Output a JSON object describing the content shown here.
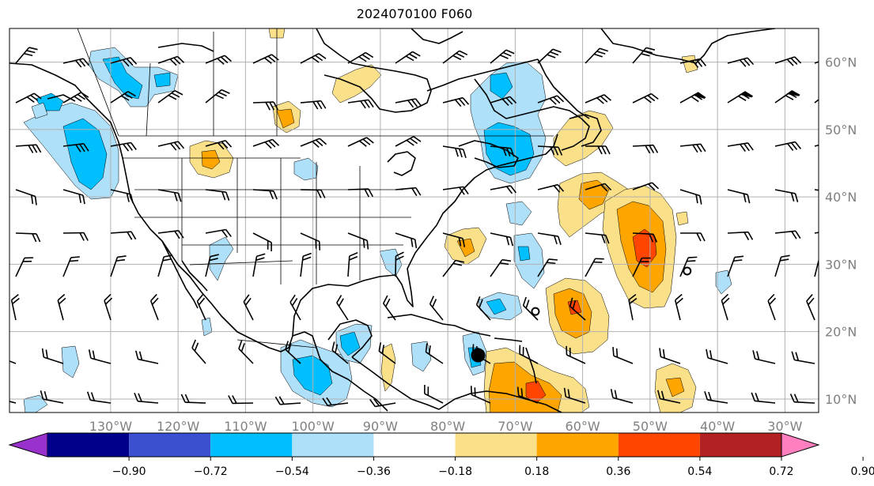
{
  "title": "2024070100 F060",
  "map": {
    "projection": "equirectangular",
    "lon_range": [
      -145,
      -25
    ],
    "lat_range": [
      8,
      65
    ],
    "gridlines": true,
    "lon_tick_labels": [
      "130°W",
      "120°W",
      "110°W",
      "100°W",
      "90°W",
      "80°W",
      "70°W",
      "60°W",
      "50°W",
      "40°W",
      "30°W"
    ],
    "lat_tick_labels": [
      "10°N",
      "20°N",
      "30°N",
      "40°N",
      "50°N",
      "60°N"
    ],
    "tick_label_color": "#808080",
    "markers": [
      {
        "type": "filled-dot",
        "lon": -75.5,
        "lat": 16.5
      },
      {
        "type": "open-circle",
        "lon": -67,
        "lat": 23
      },
      {
        "type": "open-circle",
        "lon": -44.5,
        "lat": 29
      }
    ]
  },
  "colorbar": {
    "ticks": [
      "−0.90",
      "−0.72",
      "−0.54",
      "−0.36",
      "−0.18",
      "0.18",
      "0.36",
      "0.54",
      "0.72",
      "0.90"
    ],
    "under_color": "#9932cc",
    "over_color": "#ff7fbf",
    "colors": [
      "#9932cc",
      "#00008b",
      "#3a50d0",
      "#00bfff",
      "#aee0fa",
      "#ffffff",
      "#fbe08a",
      "#ffa500",
      "#ff4500",
      "#b22222",
      "#ff7fbf"
    ]
  }
}
